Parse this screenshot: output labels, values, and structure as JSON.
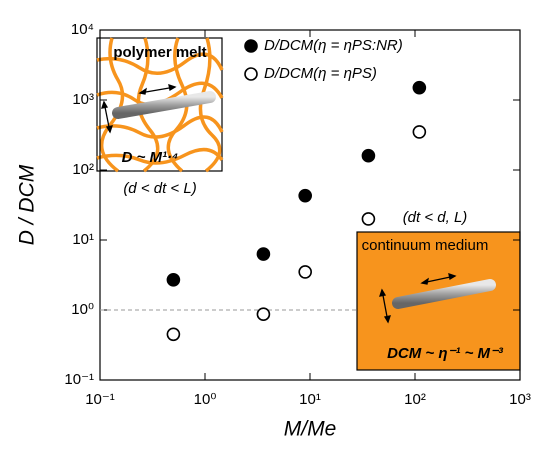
{
  "chart_data": {
    "type": "scatter",
    "xlabel": "M/Me",
    "ylabel": "D / DCM",
    "xscale": "log",
    "yscale": "log",
    "xlim": [
      0.1,
      1000
    ],
    "ylim": [
      0.1,
      10000
    ],
    "xticks": [
      {
        "value": 0.1,
        "label": "10⁻¹"
      },
      {
        "value": 1,
        "label": "10⁰"
      },
      {
        "value": 10,
        "label": "10¹"
      },
      {
        "value": 100,
        "label": "10²"
      },
      {
        "value": 1000,
        "label": "10³"
      }
    ],
    "yticks": [
      {
        "value": 0.1,
        "label": "10⁻¹"
      },
      {
        "value": 1,
        "label": "10⁰"
      },
      {
        "value": 10,
        "label": "10¹"
      },
      {
        "value": 100,
        "label": "10²"
      },
      {
        "value": 1000,
        "label": "10³"
      },
      {
        "value": 10000,
        "label": "10⁴"
      }
    ],
    "reference_line": 1,
    "legend": "upper center",
    "series": [
      {
        "name": "D/DCM(η = ηPS:NR)",
        "color": "#000000",
        "marker": "filled",
        "x": [
          0.5,
          3.6,
          9,
          36,
          110
        ],
        "values": [
          2.7,
          6.3,
          43,
          160,
          1500
        ]
      },
      {
        "name": "D/DCM(η = ηPS)",
        "color": "#000000",
        "marker": "open",
        "x": [
          0.5,
          3.6,
          9,
          36,
          110
        ],
        "values": [
          0.45,
          0.87,
          3.5,
          20,
          350
        ]
      }
    ],
    "annotations": [
      "polymer melt",
      "D ~ M¹·⁴",
      "(d < dt < L)",
      "(dt < d, L)",
      "continuum medium",
      "DCM ~ η⁻¹ ~ M⁻³"
    ]
  }
}
